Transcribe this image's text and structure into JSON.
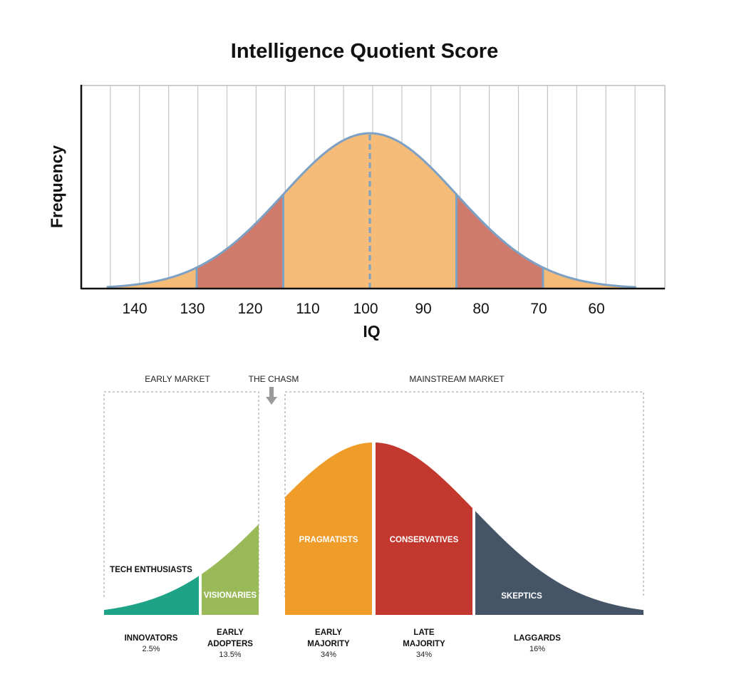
{
  "chart_data": [
    {
      "type": "area",
      "title": "Intelligence Quotient Score",
      "xlabel": "IQ",
      "ylabel": "Frequency",
      "x_reversed": true,
      "x_ticks": [
        140,
        130,
        120,
        110,
        100,
        90,
        80,
        70,
        60
      ],
      "mean": 100,
      "sd": 15,
      "regions": [
        {
          "range": [
            130,
            145
          ],
          "color": "#f4bb79"
        },
        {
          "range": [
            115,
            130
          ],
          "color": "#d07a6b"
        },
        {
          "range": [
            85,
            115
          ],
          "color": "#f4bb79"
        },
        {
          "range": [
            70,
            85
          ],
          "color": "#d07a6b"
        },
        {
          "range": [
            55,
            70
          ],
          "color": "#f4bb79"
        }
      ],
      "curve_color": "#7da1c4",
      "grid": true
    },
    {
      "type": "area",
      "annotations": {
        "early_market": "EARLY MARKET",
        "chasm": "THE CHASM",
        "mainstream_market": "MAINSTREAM MARKET"
      },
      "segments": [
        {
          "category": "INNOVATORS",
          "share": "2.5%",
          "persona": "TECH ENTHUSIASTS",
          "color": "#1fa386"
        },
        {
          "category": "EARLY\nADOPTERS",
          "share": "13.5%",
          "persona": "VISIONARIES",
          "color": "#9aba5a"
        },
        {
          "category": "EARLY\nMAJORITY",
          "share": "34%",
          "persona": "PRAGMATISTS",
          "color": "#ef9c29"
        },
        {
          "category": "LATE\nMAJORITY",
          "share": "34%",
          "persona": "CONSERVATIVES",
          "color": "#c2382f"
        },
        {
          "category": "LAGGARDS",
          "share": "16%",
          "persona": "SKEPTICS",
          "color": "#465468"
        }
      ]
    }
  ]
}
